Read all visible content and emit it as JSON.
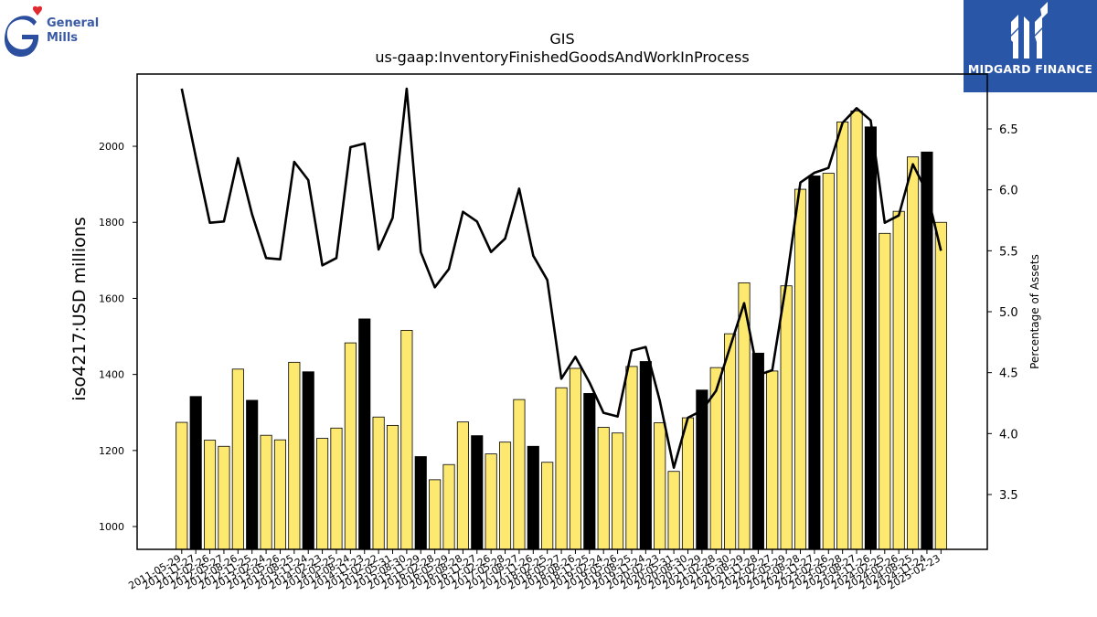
{
  "branding": {
    "company_logo_line1": "General",
    "company_logo_line2": "Mills",
    "publisher_logo_text": "MIDGARD FINANCE"
  },
  "chart_data": {
    "type": "bar",
    "title": "GIS",
    "subtitle": "us-gaap:InventoryFinishedGoodsAndWorkInProcess",
    "ylabel": "iso4217:USD  millions",
    "y2label": "Percentage of Assets",
    "ylim": [
      940,
      2190
    ],
    "y2lim": [
      3.05,
      6.95
    ],
    "yticks": [
      1000,
      1200,
      1400,
      1600,
      1800,
      2000
    ],
    "y2ticks": [
      3.5,
      4.0,
      4.5,
      5.0,
      5.5,
      6.0,
      6.5
    ],
    "colors": {
      "bar": "#fde870",
      "bar_highlight": "#000000",
      "line": "#000000"
    },
    "categories": [
      "2011-05-29",
      "2011-11-27",
      "2012-02-26",
      "2012-05-27",
      "2012-08-26",
      "2012-11-25",
      "2013-02-24",
      "2013-05-26",
      "2013-08-25",
      "2013-11-24",
      "2014-02-23",
      "2014-05-25",
      "2014-08-24",
      "2014-11-23",
      "2015-02-22",
      "2015-05-31",
      "2015-08-30",
      "2015-11-29",
      "2016-02-28",
      "2016-05-29",
      "2016-08-28",
      "2016-11-27",
      "2017-02-26",
      "2017-05-28",
      "2017-08-27",
      "2017-11-26",
      "2018-02-25",
      "2018-05-27",
      "2018-08-26",
      "2018-11-25",
      "2019-02-24",
      "2019-05-26",
      "2019-08-25",
      "2019-11-24",
      "2020-02-23",
      "2020-05-31",
      "2020-08-30",
      "2020-11-29",
      "2021-02-28",
      "2021-05-30",
      "2021-08-29",
      "2021-11-28",
      "2022-02-27",
      "2022-05-29",
      "2022-08-28",
      "2022-11-27",
      "2023-02-26",
      "2023-05-28",
      "2023-08-27",
      "2023-11-26",
      "2024-02-25",
      "2024-05-26",
      "2024-08-25",
      "2024-11-24",
      "2025-02-23"
    ],
    "tick_labels": [
      "2011-05-29",
      "2011-11-27",
      "2012-02-26",
      "2012-05-27",
      "2012-08-26",
      "2012-11-25",
      "2013-02-24",
      "2013-05-26",
      "2013-08-25",
      "2013-11-24",
      "2014-02-23",
      "2014-05-25",
      "2014-08-24",
      "2014-11-23",
      "2015-02-22",
      "2015-05-31",
      "2015-08-30",
      "2015-11-29",
      "2016-02-28",
      "2016-05-29",
      "2016-08-28",
      "2016-11-27",
      "2017-02-26",
      "2017-05-28",
      "2017-08-27",
      "2017-11-26",
      "2018-02-25",
      "2018-05-27",
      "2018-08-26",
      "2018-11-25",
      "2019-02-24",
      "2019-05-26",
      "2019-08-25",
      "2019-11-24",
      "2020-02-23",
      "2020-05-31",
      "2020-08-30",
      "2020-11-29",
      "2021-02-28",
      "2021-05-30",
      "2021-08-29",
      "2021-11-28",
      "2022-02-27",
      "2022-05-29",
      "2022-08-28",
      "2022-11-27",
      "2023-02-26",
      "2023-05-28",
      "2023-08-27",
      "2023-11-26",
      "2024-02-25",
      "2024-05-26",
      "2024-08-25",
      "2024-11-24",
      "2025-02-23"
    ],
    "series": [
      {
        "type": "bar",
        "axis": "left",
        "values": [
          1274,
          1342,
          1227,
          1211,
          1414,
          1332,
          1240,
          1228,
          1432,
          1407,
          1232,
          1259,
          1483,
          1546,
          1288,
          1266,
          1516,
          1184,
          1123,
          1163,
          1275,
          1239,
          1191,
          1222,
          1334,
          1211,
          1169,
          1365,
          1416,
          1350,
          1261,
          1246,
          1421,
          1434,
          1273,
          1145,
          1286,
          1359,
          1418,
          1507,
          1641,
          1456,
          1409,
          1633,
          1887,
          1922,
          1929,
          2064,
          2093,
          2051,
          1771,
          1829,
          1972,
          1985,
          1800
        ],
        "highlighted": [
          false,
          true,
          false,
          false,
          false,
          true,
          false,
          false,
          false,
          true,
          false,
          false,
          false,
          true,
          false,
          false,
          false,
          true,
          false,
          false,
          false,
          true,
          false,
          false,
          false,
          true,
          false,
          false,
          false,
          true,
          false,
          false,
          false,
          true,
          false,
          false,
          false,
          true,
          false,
          false,
          false,
          true,
          false,
          false,
          false,
          true,
          false,
          false,
          false,
          true,
          false,
          false,
          false,
          true,
          false
        ]
      },
      {
        "type": "line",
        "axis": "right",
        "values": [
          6.83,
          6.27,
          5.73,
          5.74,
          6.26,
          5.8,
          5.44,
          5.43,
          6.23,
          6.08,
          5.38,
          5.44,
          6.35,
          6.38,
          5.51,
          5.77,
          6.83,
          5.49,
          5.2,
          5.35,
          5.82,
          5.74,
          5.49,
          5.6,
          6.01,
          5.46,
          5.26,
          4.45,
          4.63,
          4.42,
          4.17,
          4.14,
          4.68,
          4.71,
          4.27,
          3.72,
          4.13,
          4.19,
          4.35,
          4.71,
          5.07,
          4.48,
          4.52,
          5.24,
          6.06,
          6.14,
          6.18,
          6.55,
          6.67,
          6.57,
          5.73,
          5.79,
          6.21,
          5.98,
          5.5
        ]
      }
    ]
  }
}
